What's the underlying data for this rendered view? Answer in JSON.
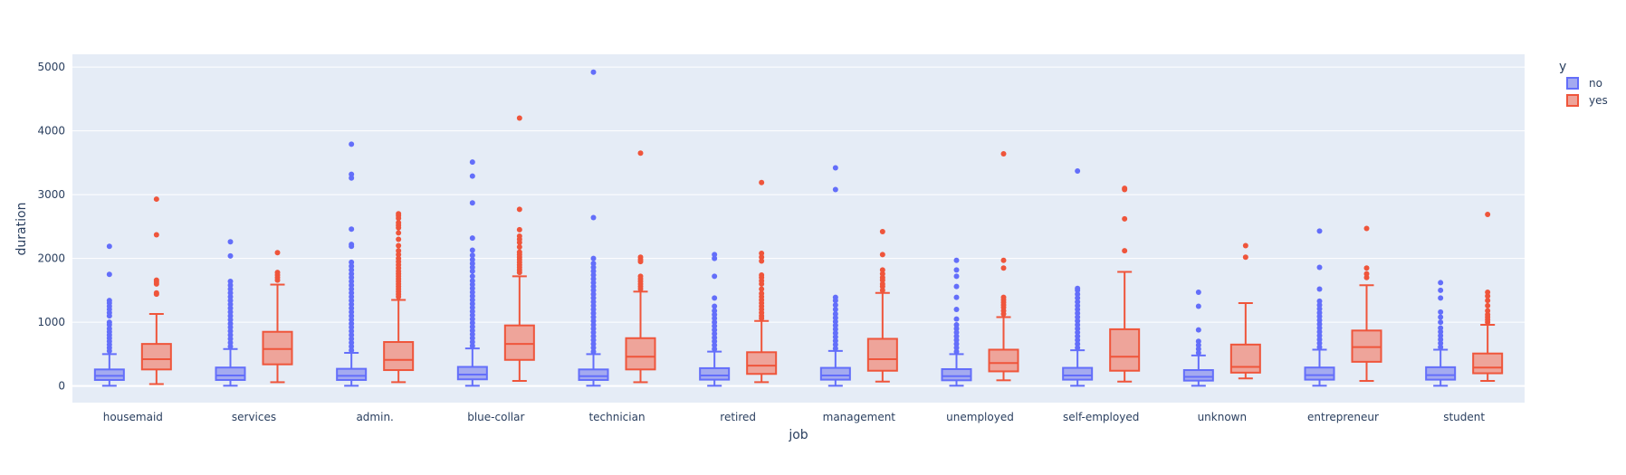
{
  "chart_data": {
    "type": "box",
    "xlabel": "job",
    "ylabel": "duration",
    "ylim": [
      -260,
      5200
    ],
    "yticks": [
      0,
      1000,
      2000,
      3000,
      4000,
      5000
    ],
    "grid": true,
    "legend_title": "y",
    "legend_position": "top-right",
    "categories": [
      "housemaid",
      "services",
      "admin.",
      "blue-collar",
      "technician",
      "retired",
      "management",
      "unemployed",
      "self-employed",
      "unknown",
      "entrepreneur",
      "student"
    ],
    "series": [
      {
        "name": "no",
        "color": "#636efa",
        "fill": "#a4aaf0",
        "boxes": [
          {
            "min": 5,
            "q1": 95,
            "median": 160,
            "q3": 260,
            "max": 500,
            "outliers": [
              550,
              600,
              650,
              700,
              750,
              800,
              850,
              900,
              960,
              1000,
              1100,
              1150,
              1200,
              1250,
              1300,
              1340,
              1750,
              2190
            ]
          },
          {
            "min": 5,
            "q1": 95,
            "median": 165,
            "q3": 290,
            "max": 580,
            "outliers": [
              620,
              680,
              740,
              800,
              860,
              920,
              980,
              1040,
              1100,
              1160,
              1220,
              1280,
              1340,
              1400,
              1460,
              1520,
              1580,
              1640,
              2040,
              2260
            ]
          },
          {
            "min": 5,
            "q1": 95,
            "median": 160,
            "q3": 270,
            "max": 520,
            "outliers": [
              560,
              620,
              680,
              740,
              800,
              860,
              920,
              980,
              1040,
              1100,
              1160,
              1220,
              1280,
              1340,
              1400,
              1460,
              1520,
              1580,
              1640,
              1700,
              1760,
              1820,
              1880,
              1940,
              2190,
              2220,
              2460,
              3260,
              3320,
              3790
            ]
          },
          {
            "min": 5,
            "q1": 105,
            "median": 180,
            "q3": 300,
            "max": 590,
            "outliers": [
              630,
              690,
              750,
              810,
              870,
              930,
              990,
              1050,
              1110,
              1170,
              1230,
              1290,
              1350,
              1410,
              1470,
              1530,
              1590,
              1650,
              1720,
              1800,
              1860,
              1920,
              1980,
              2050,
              2130,
              2320,
              2870,
              3290,
              3510
            ]
          },
          {
            "min": 5,
            "q1": 95,
            "median": 155,
            "q3": 260,
            "max": 500,
            "outliers": [
              540,
              600,
              660,
              720,
              780,
              840,
              900,
              960,
              1020,
              1080,
              1140,
              1200,
              1260,
              1320,
              1380,
              1440,
              1500,
              1560,
              1620,
              1680,
              1740,
              1800,
              1860,
              1920,
              2000,
              2640,
              4920
            ]
          },
          {
            "min": 5,
            "q1": 100,
            "median": 165,
            "q3": 280,
            "max": 540,
            "outliers": [
              580,
              640,
              700,
              760,
              820,
              880,
              940,
              1000,
              1060,
              1120,
              1180,
              1250,
              1380,
              1720,
              2000,
              2060
            ]
          },
          {
            "min": 5,
            "q1": 100,
            "median": 165,
            "q3": 285,
            "max": 550,
            "outliers": [
              590,
              650,
              710,
              770,
              830,
              890,
              950,
              1010,
              1070,
              1130,
              1200,
              1270,
              1340,
              1390,
              3080,
              3420
            ]
          },
          {
            "min": 5,
            "q1": 90,
            "median": 155,
            "q3": 265,
            "max": 500,
            "outliers": [
              540,
              600,
              660,
              720,
              780,
              840,
              900,
              960,
              1050,
              1200,
              1390,
              1560,
              1720,
              1820,
              1970
            ]
          },
          {
            "min": 5,
            "q1": 100,
            "median": 165,
            "q3": 285,
            "max": 560,
            "outliers": [
              600,
              660,
              720,
              780,
              840,
              900,
              960,
              1020,
              1080,
              1140,
              1200,
              1260,
              1320,
              1380,
              1440,
              1500,
              1530,
              3370
            ]
          },
          {
            "min": 5,
            "q1": 85,
            "median": 145,
            "q3": 250,
            "max": 480,
            "outliers": [
              520,
              580,
              640,
              700,
              880,
              1250,
              1470
            ]
          },
          {
            "min": 5,
            "q1": 100,
            "median": 170,
            "q3": 290,
            "max": 570,
            "outliers": [
              610,
              670,
              730,
              790,
              850,
              910,
              970,
              1030,
              1090,
              1150,
              1210,
              1270,
              1330,
              1520,
              1860,
              2430
            ]
          },
          {
            "min": 5,
            "q1": 100,
            "median": 170,
            "q3": 295,
            "max": 570,
            "outliers": [
              610,
              670,
              730,
              790,
              850,
              910,
              1000,
              1080,
              1160,
              1380,
              1500,
              1620
            ]
          }
        ]
      },
      {
        "name": "yes",
        "color": "#ef553b",
        "fill": "#eea49a",
        "boxes": [
          {
            "min": 30,
            "q1": 260,
            "median": 420,
            "q3": 660,
            "max": 1130,
            "outliers": [
              1440,
              1460,
              1600,
              1630,
              1660,
              2370,
              2930
            ]
          },
          {
            "min": 60,
            "q1": 340,
            "median": 580,
            "q3": 850,
            "max": 1590,
            "outliers": [
              1660,
              1700,
              1740,
              1780,
              2090
            ]
          },
          {
            "min": 60,
            "q1": 250,
            "median": 410,
            "q3": 690,
            "max": 1350,
            "outliers": [
              1400,
              1440,
              1480,
              1520,
              1560,
              1600,
              1640,
              1680,
              1720,
              1760,
              1800,
              1850,
              1900,
              1950,
              2000,
              2060,
              2120,
              2200,
              2300,
              2400,
              2480,
              2520,
              2560,
              2630,
              2670,
              2700
            ]
          },
          {
            "min": 80,
            "q1": 410,
            "median": 660,
            "q3": 950,
            "max": 1720,
            "outliers": [
              1780,
              1820,
              1860,
              1900,
              1940,
              1980,
              2020,
              2060,
              2100,
              2180,
              2250,
              2300,
              2350,
              2450,
              2770,
              4200
            ]
          },
          {
            "min": 60,
            "q1": 260,
            "median": 460,
            "q3": 750,
            "max": 1480,
            "outliers": [
              1520,
              1560,
              1600,
              1640,
              1680,
              1720,
              1950,
              1980,
              2020,
              3650
            ]
          },
          {
            "min": 60,
            "q1": 190,
            "median": 320,
            "q3": 530,
            "max": 1020,
            "outliers": [
              1060,
              1100,
              1150,
              1200,
              1250,
              1300,
              1350,
              1400,
              1450,
              1520,
              1600,
              1650,
              1700,
              1740,
              1960,
              2020,
              2080,
              3190
            ]
          },
          {
            "min": 70,
            "q1": 240,
            "median": 420,
            "q3": 740,
            "max": 1460,
            "outliers": [
              1500,
              1560,
              1600,
              1660,
              1700,
              1760,
              1820,
              2060,
              2420
            ]
          },
          {
            "min": 90,
            "q1": 230,
            "median": 360,
            "q3": 570,
            "max": 1080,
            "outliers": [
              1130,
              1180,
              1230,
              1270,
              1310,
              1350,
              1390,
              1850,
              1970,
              3640
            ]
          },
          {
            "min": 70,
            "q1": 240,
            "median": 460,
            "q3": 890,
            "max": 1790,
            "outliers": [
              2120,
              2620,
              3080,
              3100
            ]
          },
          {
            "min": 120,
            "q1": 210,
            "median": 300,
            "q3": 650,
            "max": 1300,
            "outliers": [
              2020,
              2200
            ]
          },
          {
            "min": 80,
            "q1": 380,
            "median": 610,
            "q3": 870,
            "max": 1580,
            "outliers": [
              1700,
              1760,
              1850,
              2470
            ]
          },
          {
            "min": 80,
            "q1": 200,
            "median": 290,
            "q3": 510,
            "max": 960,
            "outliers": [
              1000,
              1040,
              1080,
              1120,
              1180,
              1260,
              1340,
              1410,
              1470,
              2690
            ]
          }
        ]
      }
    ]
  }
}
